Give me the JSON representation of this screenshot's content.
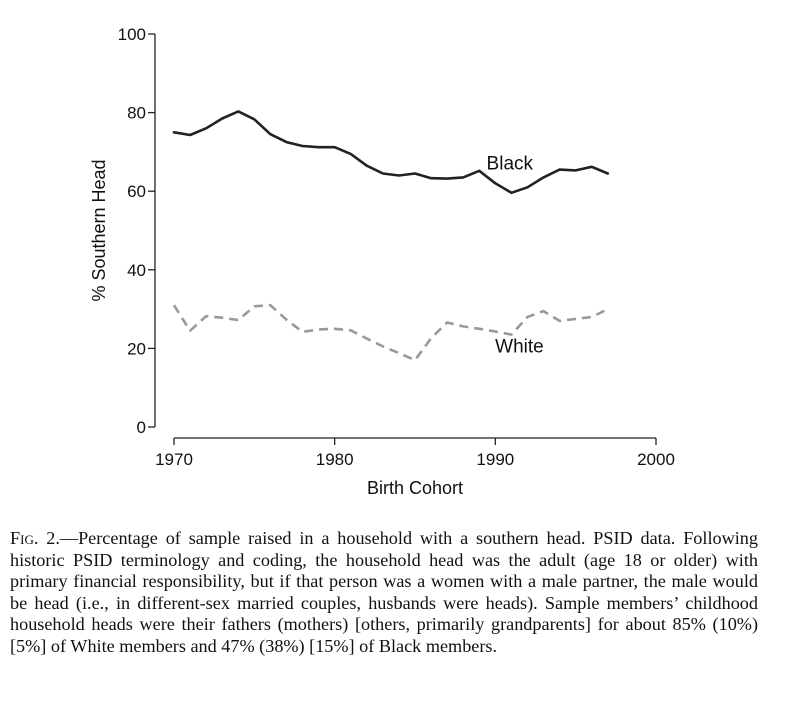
{
  "chart_data": {
    "type": "line",
    "xlabel": "Birth Cohort",
    "ylabel": "% Southern Head",
    "xlim": [
      1970,
      2000
    ],
    "ylim": [
      0,
      100
    ],
    "xticks": [
      "1970",
      "1980",
      "1990",
      "2000"
    ],
    "yticks": [
      "0",
      "20",
      "40",
      "60",
      "80",
      "100"
    ],
    "grid": false,
    "legend": "inline labels",
    "series": [
      {
        "name": "Black",
        "label_at": [
          1990.9,
          65.5
        ],
        "color": "#222222",
        "dash": "solid",
        "x": [
          1970,
          1971,
          1972,
          1973,
          1974,
          1975,
          1976,
          1977,
          1978,
          1979,
          1980,
          1981,
          1982,
          1983,
          1984,
          1985,
          1986,
          1987,
          1988,
          1989,
          1990,
          1991,
          1992,
          1993,
          1994,
          1995,
          1996,
          1997
        ],
        "y": [
          75,
          74.3,
          76,
          78.5,
          80.3,
          78.3,
          74.5,
          72.5,
          71.5,
          71.2,
          71.2,
          69.5,
          66.5,
          64.5,
          64.0,
          64.5,
          63.3,
          63.2,
          63.5,
          65.2,
          62.0,
          59.6,
          61.0,
          63.5,
          65.5,
          65.3,
          66.2,
          64.5
        ]
      },
      {
        "name": "White",
        "label_at": [
          1991.5,
          19.0
        ],
        "color": "#999999",
        "dash": "dashed",
        "x": [
          1970,
          1971,
          1972,
          1973,
          1974,
          1975,
          1976,
          1977,
          1978,
          1979,
          1980,
          1981,
          1982,
          1983,
          1984,
          1985,
          1986,
          1987,
          1988,
          1989,
          1990,
          1991,
          1992,
          1993,
          1994,
          1995,
          1996,
          1997
        ],
        "y": [
          31,
          24.5,
          28.2,
          27.8,
          27.2,
          30.7,
          31,
          27.3,
          24.2,
          24.8,
          25.0,
          24.6,
          22.5,
          20.5,
          18.8,
          17.0,
          22.6,
          26.6,
          25.6,
          25.0,
          24.3,
          23.5,
          28.0,
          29.5,
          27.0,
          27.5,
          28.0,
          30.0
        ]
      }
    ]
  },
  "caption": {
    "fig_label": "Fig. 2.",
    "text": "—Percentage of sample raised in a household with a southern head. PSID data. Following historic PSID terminology and coding, the household head was the adult (age 18 or older) with primary financial responsibility, but if that person was a women with a male partner, the male would be head (i.e., in different-sex married couples, husbands were heads). Sample members’ childhood household heads were their fathers (mothers) [others, primarily grandparents] for about 85% (10%) [5%] of White members and 47% (38%) [15%] of Black members."
  }
}
